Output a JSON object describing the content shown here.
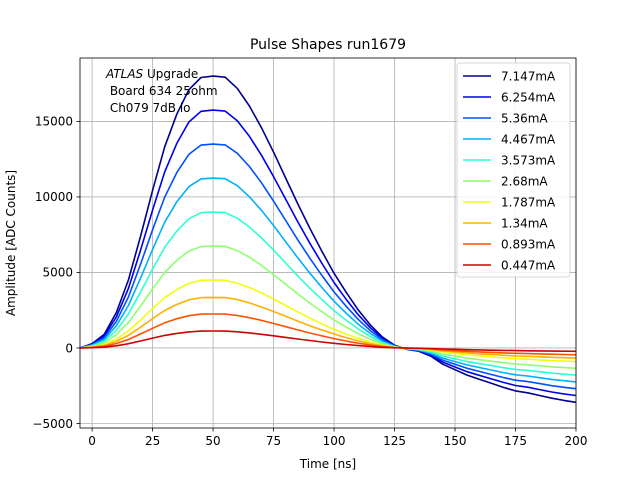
{
  "chart_data": {
    "type": "line",
    "title": "Pulse Shapes run1679",
    "xlabel": "Time [ns]",
    "ylabel": "Amplitude [ADC Counts]",
    "xlim": [
      -5,
      200
    ],
    "ylim": [
      -5300,
      19200
    ],
    "xticks": [
      0,
      25,
      50,
      75,
      100,
      125,
      150,
      175,
      200
    ],
    "yticks": [
      -5000,
      0,
      5000,
      10000,
      15000
    ],
    "grid": true,
    "legend_position": "top-right",
    "annotation": {
      "atlas": "ATLAS",
      "line1_rest": " Upgrade",
      "line2": " Board 634 25ohm",
      "line3": " Ch079 7dB lo"
    },
    "x": [
      -5,
      0,
      5,
      10,
      15,
      20,
      25,
      30,
      35,
      40,
      45,
      50,
      55,
      60,
      65,
      70,
      75,
      80,
      85,
      90,
      95,
      100,
      105,
      110,
      115,
      120,
      125,
      130,
      135,
      140,
      145,
      150,
      155,
      160,
      165,
      170,
      175,
      180,
      185,
      190,
      195,
      200
    ],
    "reference_peak": 18000,
    "reference_shape": [
      0.0,
      0.016,
      0.05,
      0.13,
      0.25,
      0.41,
      0.58,
      0.74,
      0.86,
      0.95,
      0.995,
      1.0,
      0.996,
      0.955,
      0.89,
      0.81,
      0.72,
      0.625,
      0.53,
      0.44,
      0.355,
      0.275,
      0.205,
      0.14,
      0.085,
      0.04,
      0.01,
      -0.005,
      -0.012,
      -0.03,
      -0.06,
      -0.08,
      -0.1,
      -0.115,
      -0.13,
      -0.145,
      -0.158,
      -0.165,
      -0.175,
      -0.185,
      -0.193,
      -0.2
    ],
    "series": [
      {
        "name": "7.147mA",
        "peak": 18000,
        "color": "#00008f"
      },
      {
        "name": "6.254mA",
        "peak": 15750,
        "color": "#0000ef"
      },
      {
        "name": "5.36mA",
        "peak": 13500,
        "color": "#0050ff"
      },
      {
        "name": "4.467mA",
        "peak": 11250,
        "color": "#00b0ff"
      },
      {
        "name": "3.573mA",
        "peak": 9000,
        "color": "#2fffcf"
      },
      {
        "name": "2.68mA",
        "peak": 6750,
        "color": "#8fff6f"
      },
      {
        "name": "1.787mA",
        "peak": 4500,
        "color": "#efff10"
      },
      {
        "name": "1.34mA",
        "peak": 3350,
        "color": "#ffb000"
      },
      {
        "name": "0.893mA",
        "peak": 2250,
        "color": "#ff5000"
      },
      {
        "name": "0.447mA",
        "peak": 1120,
        "color": "#cf0000"
      }
    ]
  }
}
